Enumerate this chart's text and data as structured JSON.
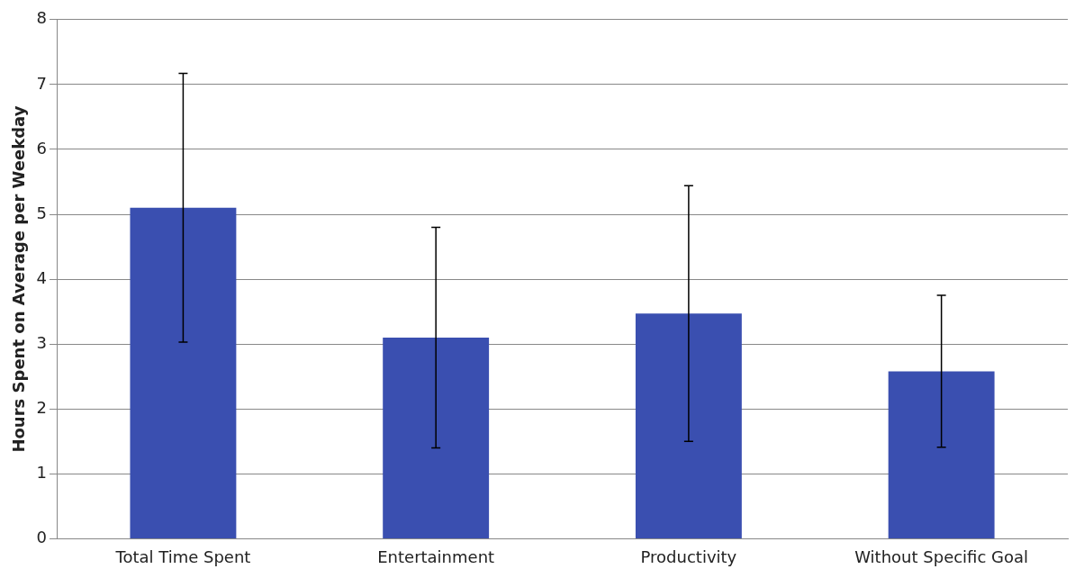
{
  "chart_data": {
    "type": "bar",
    "ylabel": "Hours Spent on Average per Weekday",
    "categories": [
      "Total Time Spent",
      "Entertainment",
      "Productivity",
      "Without Specific Goal"
    ],
    "values": [
      5.1,
      3.1,
      3.47,
      2.58
    ],
    "errors": [
      2.07,
      1.7,
      1.97,
      1.17
    ],
    "color": "#3a4fb0",
    "ylim": [
      0,
      8
    ],
    "yticks": [
      0,
      1,
      2,
      3,
      4,
      5,
      6,
      7,
      8
    ],
    "grid": "y",
    "legend": false
  }
}
